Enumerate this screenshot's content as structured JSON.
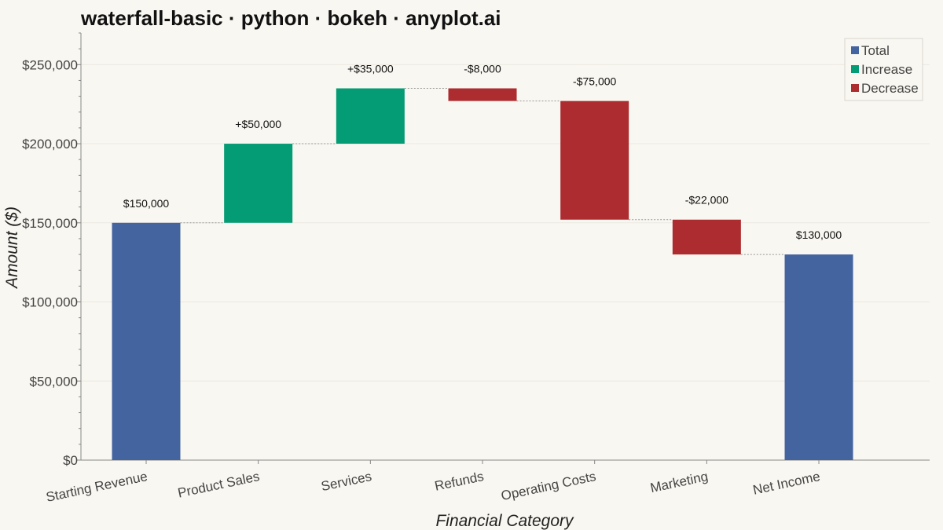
{
  "title": "waterfall-basic · python · bokeh · anyplot.ai",
  "colors": {
    "total": "#4464a0",
    "increase": "#049c74",
    "decrease": "#ac2c2f",
    "background": "#f9f7f1",
    "grid": "#ebe8e0",
    "axis": "#888888",
    "connector": "#999999"
  },
  "legend": {
    "placement": "top-right",
    "items": [
      {
        "label": "Total",
        "kind": "total"
      },
      {
        "label": "Increase",
        "kind": "increase"
      },
      {
        "label": "Decrease",
        "kind": "decrease"
      }
    ]
  },
  "chart_data": {
    "type": "bar",
    "subtype": "waterfall",
    "title": "waterfall-basic · python · bokeh · anyplot.ai",
    "xlabel": "Financial Category",
    "ylabel": "Amount ($)",
    "ylim": [
      0,
      270000
    ],
    "yticks": [
      0,
      50000,
      100000,
      150000,
      200000,
      250000
    ],
    "ytick_labels": [
      "$0",
      "$50,000",
      "$100,000",
      "$150,000",
      "$200,000",
      "$250,000"
    ],
    "grid": true,
    "categories": [
      "Starting Revenue",
      "Product Sales",
      "Services",
      "Refunds",
      "Operating Costs",
      "Marketing",
      "Net Income"
    ],
    "bars": [
      {
        "category": "Starting Revenue",
        "kind": "total",
        "start": 0,
        "end": 150000,
        "label": "$150,000"
      },
      {
        "category": "Product Sales",
        "kind": "increase",
        "start": 150000,
        "end": 200000,
        "label": "+$50,000"
      },
      {
        "category": "Services",
        "kind": "increase",
        "start": 200000,
        "end": 235000,
        "label": "+$35,000"
      },
      {
        "category": "Refunds",
        "kind": "decrease",
        "start": 235000,
        "end": 227000,
        "label": "-$8,000"
      },
      {
        "category": "Operating Costs",
        "kind": "decrease",
        "start": 227000,
        "end": 152000,
        "label": "-$75,000"
      },
      {
        "category": "Marketing",
        "kind": "decrease",
        "start": 152000,
        "end": 130000,
        "label": "-$22,000"
      },
      {
        "category": "Net Income",
        "kind": "total",
        "start": 0,
        "end": 130000,
        "label": "$130,000"
      }
    ]
  }
}
